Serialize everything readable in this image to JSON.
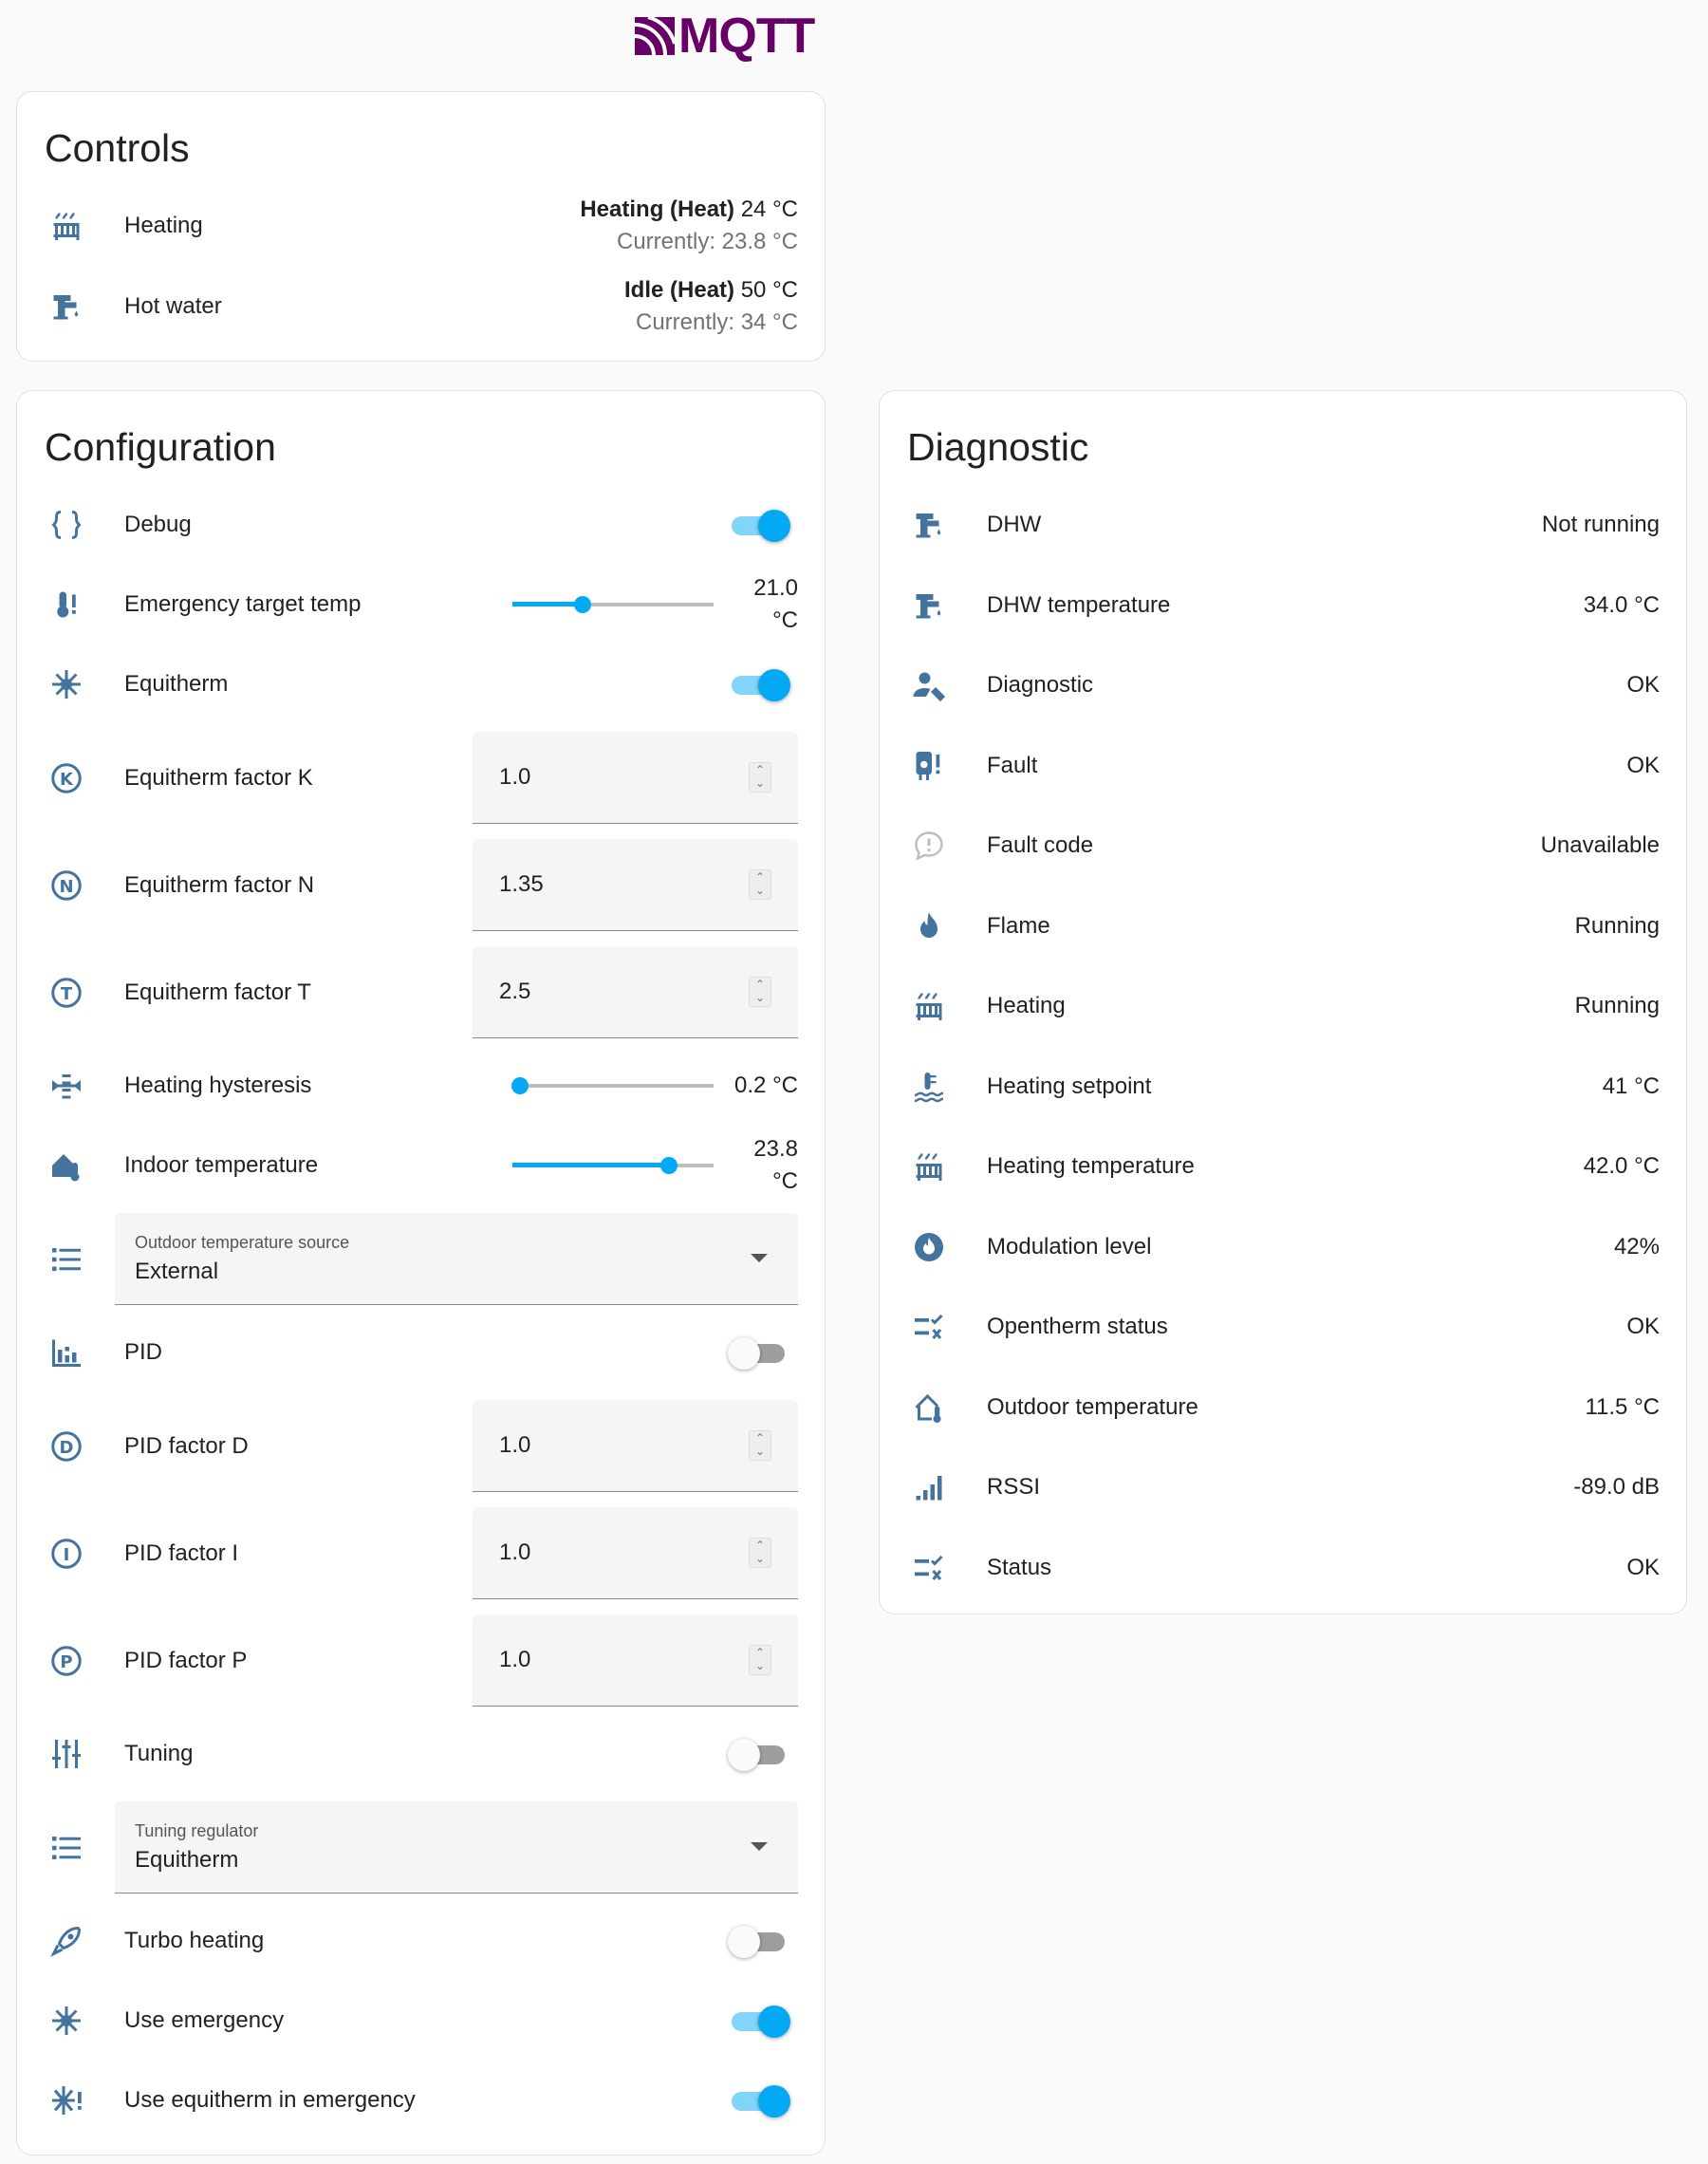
{
  "logo": "MQTT",
  "colors": {
    "icon": "#44739e",
    "accent": "#03a9f4",
    "logo": "#660066"
  },
  "controls": {
    "title": "Controls",
    "items": [
      {
        "icon": "radiator-icon",
        "label": "Heating",
        "state": "Heating (Heat)",
        "target": "24 °C",
        "current": "Currently: 23.8 °C"
      },
      {
        "icon": "water-pump-icon",
        "label": "Hot water",
        "state": "Idle (Heat)",
        "target": "50 °C",
        "current": "Currently: 34 °C"
      }
    ]
  },
  "configuration": {
    "title": "Configuration",
    "items": [
      {
        "type": "toggle",
        "icon": "code-braces-icon",
        "label": "Debug",
        "on": true
      },
      {
        "type": "slider",
        "icon": "thermometer-alert-icon",
        "label": "Emergency target temp",
        "value": "21.0 °C",
        "level": 0.35
      },
      {
        "type": "toggle",
        "icon": "sun-snowflake-icon",
        "label": "Equitherm",
        "on": true
      },
      {
        "type": "number",
        "icon": "alpha-k-circle-icon",
        "letter": "K",
        "label": "Equitherm factor K",
        "value": "1.0"
      },
      {
        "type": "number",
        "icon": "alpha-n-circle-icon",
        "letter": "N",
        "label": "Equitherm factor N",
        "value": "1.35"
      },
      {
        "type": "number",
        "icon": "alpha-t-circle-icon",
        "letter": "T",
        "label": "Equitherm factor T",
        "value": "2.5"
      },
      {
        "type": "slider",
        "icon": "arrow-collapse-icon",
        "label": "Heating hysteresis",
        "value": "0.2 °C",
        "level": 0.04
      },
      {
        "type": "slider",
        "icon": "home-thermometer-icon",
        "label": "Indoor temperature",
        "value": "23.8 °C",
        "level": 0.78
      },
      {
        "type": "select",
        "icon": "format-list-bulleted-icon",
        "label": "Outdoor temperature source",
        "value": "External"
      },
      {
        "type": "toggle",
        "icon": "chart-bar-icon",
        "label": "PID",
        "on": false
      },
      {
        "type": "number",
        "icon": "alpha-d-circle-icon",
        "letter": "D",
        "label": "PID factor D",
        "value": "1.0"
      },
      {
        "type": "number",
        "icon": "alpha-i-circle-icon",
        "letter": "I",
        "label": "PID factor I",
        "value": "1.0"
      },
      {
        "type": "number",
        "icon": "alpha-p-circle-icon",
        "letter": "P",
        "label": "PID factor P",
        "value": "1.0"
      },
      {
        "type": "toggle",
        "icon": "tune-vertical-icon",
        "label": "Tuning",
        "on": false
      },
      {
        "type": "select",
        "icon": "format-list-bulleted-icon",
        "label": "Tuning regulator",
        "value": "Equitherm"
      },
      {
        "type": "toggle",
        "icon": "rocket-icon",
        "label": "Turbo heating",
        "on": false
      },
      {
        "type": "toggle",
        "icon": "sun-snowflake-icon",
        "label": "Use emergency",
        "on": true
      },
      {
        "type": "toggle",
        "icon": "snowflake-alert-icon",
        "label": "Use equitherm in emergency",
        "on": true
      }
    ]
  },
  "diagnostic": {
    "title": "Diagnostic",
    "items": [
      {
        "icon": "water-pump-icon",
        "label": "DHW",
        "value": "Not running"
      },
      {
        "icon": "water-pump-icon",
        "label": "DHW temperature",
        "value": "34.0 °C"
      },
      {
        "icon": "account-wrench-icon",
        "label": "Diagnostic",
        "value": "OK"
      },
      {
        "icon": "water-boiler-alert-icon",
        "label": "Fault",
        "value": "OK"
      },
      {
        "icon": "message-alert-icon",
        "label": "Fault code",
        "value": "Unavailable",
        "muted": true
      },
      {
        "icon": "fire-icon",
        "label": "Flame",
        "value": "Running"
      },
      {
        "icon": "radiator-icon",
        "label": "Heating",
        "value": "Running"
      },
      {
        "icon": "thermometer-water-icon",
        "label": "Heating setpoint",
        "value": "41 °C"
      },
      {
        "icon": "radiator-icon",
        "label": "Heating temperature",
        "value": "42.0 °C"
      },
      {
        "icon": "fire-circle-icon",
        "label": "Modulation level",
        "value": "42%"
      },
      {
        "icon": "list-status-icon",
        "label": "Opentherm status",
        "value": "OK"
      },
      {
        "icon": "home-thermometer-outline-icon",
        "label": "Outdoor temperature",
        "value": "11.5 °C"
      },
      {
        "icon": "signal-icon",
        "label": "RSSI",
        "value": "-89.0 dB"
      },
      {
        "icon": "list-status-icon",
        "label": "Status",
        "value": "OK"
      }
    ]
  }
}
